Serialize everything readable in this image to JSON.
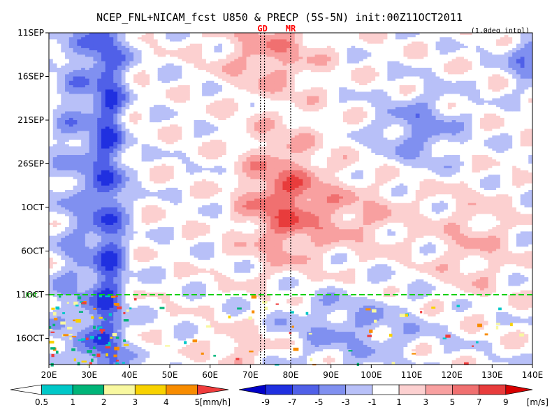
{
  "chart_data": {
    "type": "heatmap",
    "title": "NCEP_FNL+NICAM_fcst U850 & PRECP (5S-5N) init:00Z11OCT2011",
    "subtitle": "(1.0deg intpl)",
    "x": {
      "ticks": [
        20,
        30,
        40,
        50,
        60,
        70,
        80,
        90,
        100,
        110,
        120,
        130,
        140
      ],
      "tick_labels": [
        "20E",
        "30E",
        "40E",
        "50E",
        "60E",
        "70E",
        "80E",
        "90E",
        "100E",
        "110E",
        "120E",
        "130E",
        "140E"
      ],
      "range": [
        20,
        140
      ]
    },
    "y": {
      "ticks": [
        0,
        5,
        10,
        15,
        20,
        25,
        30,
        35
      ],
      "tick_labels": [
        "11SEP",
        "16SEP",
        "21SEP",
        "26SEP",
        "1OCT",
        "6OCT",
        "11OCT",
        "16OCT"
      ],
      "range": [
        0,
        38
      ],
      "direction": "down"
    },
    "vertical_lines": [
      {
        "label": "GD",
        "x_values": [
          72.5,
          73.5
        ]
      },
      {
        "label": "MR",
        "x_values": [
          80
        ]
      }
    ],
    "init_line": {
      "label": "init",
      "y_value": 30
    },
    "u850": {
      "units": "[m/s]",
      "levels": [
        -9,
        -7,
        -5,
        -3,
        -1,
        1,
        3,
        5,
        7,
        9
      ],
      "level_labels": [
        "-9",
        "-7",
        "-5",
        "-3",
        "-1",
        "1",
        "3",
        "5",
        "7",
        "9"
      ],
      "colors": [
        "#0000c8",
        "#2030e0",
        "#5060e8",
        "#8090f0",
        "#b8c0f8",
        "#ffffff",
        "#fcd0d0",
        "#f8a0a0",
        "#f07070",
        "#e83c3c",
        "#d80000"
      ]
    },
    "precip": {
      "units": "[mm/h]",
      "levels": [
        0.5,
        1,
        2,
        3,
        4,
        5
      ],
      "level_labels": [
        "0.5",
        "1",
        "2",
        "3",
        "4",
        "5"
      ],
      "colors": [
        "#ffffff",
        "#00c8c8",
        "#00b478",
        "#f8f8a0",
        "#f8d200",
        "#f88c00",
        "#f03c3c"
      ]
    }
  }
}
